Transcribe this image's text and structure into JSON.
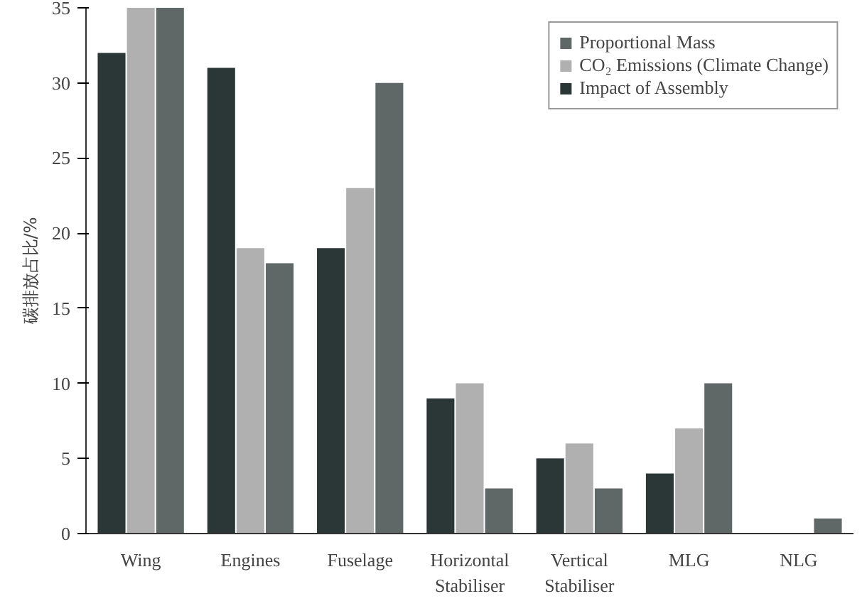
{
  "chart_data": {
    "type": "bar",
    "ylabel": "碳排放占比/%",
    "categories": [
      "Wing",
      "Engines",
      "Fuselage",
      "Horizontal\nStabiliser",
      "Vertical\nStabiliser",
      "MLG",
      "NLG"
    ],
    "series": [
      {
        "name": "Proportional Mass",
        "color": "#5f6767",
        "values": [
          35,
          18,
          30,
          3,
          3,
          10,
          1
        ]
      },
      {
        "name": "CO₂ Emissions (Climate Change)",
        "color": "#b0b0b0",
        "values": [
          35,
          19,
          23,
          10,
          6,
          7,
          0
        ]
      },
      {
        "name": "Impact of Assembly",
        "color": "#2b3636",
        "values": [
          32,
          31,
          19,
          9,
          5,
          4,
          0
        ]
      }
    ],
    "ylim": [
      0,
      35
    ],
    "yticks": [
      0,
      5,
      10,
      15,
      20,
      25,
      30,
      35
    ],
    "grid": false,
    "legend": "top right"
  }
}
